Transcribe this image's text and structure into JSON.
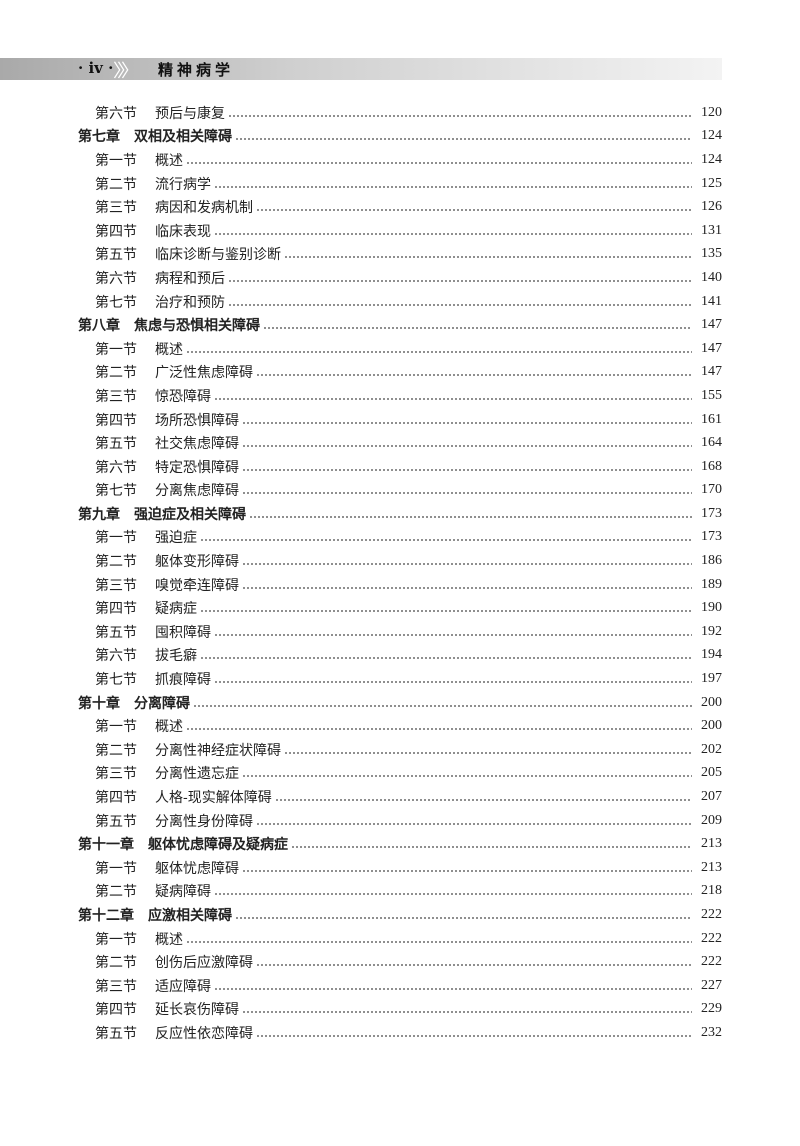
{
  "header": {
    "page_number": "· iv ·",
    "chevrons": "〉〉〉",
    "book_title": "精神病学"
  },
  "toc": [
    {
      "type": "section",
      "label": "第六节",
      "title": "预后与康复",
      "page": "120"
    },
    {
      "type": "chapter",
      "label": "第七章",
      "title": "双相及相关障碍",
      "page": "124"
    },
    {
      "type": "section",
      "label": "第一节",
      "title": "概述",
      "page": "124"
    },
    {
      "type": "section",
      "label": "第二节",
      "title": "流行病学",
      "page": "125"
    },
    {
      "type": "section",
      "label": "第三节",
      "title": "病因和发病机制",
      "page": "126"
    },
    {
      "type": "section",
      "label": "第四节",
      "title": "临床表现",
      "page": "131"
    },
    {
      "type": "section",
      "label": "第五节",
      "title": "临床诊断与鉴别诊断",
      "page": "135"
    },
    {
      "type": "section",
      "label": "第六节",
      "title": "病程和预后",
      "page": "140"
    },
    {
      "type": "section",
      "label": "第七节",
      "title": "治疗和预防",
      "page": "141"
    },
    {
      "type": "chapter",
      "label": "第八章",
      "title": "焦虑与恐惧相关障碍",
      "page": "147"
    },
    {
      "type": "section",
      "label": "第一节",
      "title": "概述",
      "page": "147"
    },
    {
      "type": "section",
      "label": "第二节",
      "title": "广泛性焦虑障碍",
      "page": "147"
    },
    {
      "type": "section",
      "label": "第三节",
      "title": "惊恐障碍",
      "page": "155"
    },
    {
      "type": "section",
      "label": "第四节",
      "title": "场所恐惧障碍",
      "page": "161"
    },
    {
      "type": "section",
      "label": "第五节",
      "title": "社交焦虑障碍",
      "page": "164"
    },
    {
      "type": "section",
      "label": "第六节",
      "title": "特定恐惧障碍",
      "page": "168"
    },
    {
      "type": "section",
      "label": "第七节",
      "title": "分离焦虑障碍",
      "page": "170"
    },
    {
      "type": "chapter",
      "label": "第九章",
      "title": "强迫症及相关障碍",
      "page": "173"
    },
    {
      "type": "section",
      "label": "第一节",
      "title": "强迫症",
      "page": "173"
    },
    {
      "type": "section",
      "label": "第二节",
      "title": "躯体变形障碍",
      "page": "186"
    },
    {
      "type": "section",
      "label": "第三节",
      "title": "嗅觉牵连障碍",
      "page": "189"
    },
    {
      "type": "section",
      "label": "第四节",
      "title": "疑病症",
      "page": "190"
    },
    {
      "type": "section",
      "label": "第五节",
      "title": "囤积障碍",
      "page": "192"
    },
    {
      "type": "section",
      "label": "第六节",
      "title": "拔毛癖",
      "page": "194"
    },
    {
      "type": "section",
      "label": "第七节",
      "title": "抓痕障碍",
      "page": "197"
    },
    {
      "type": "chapter",
      "label": "第十章",
      "title": "分离障碍",
      "page": "200"
    },
    {
      "type": "section",
      "label": "第一节",
      "title": "概述",
      "page": "200"
    },
    {
      "type": "section",
      "label": "第二节",
      "title": "分离性神经症状障碍",
      "page": "202"
    },
    {
      "type": "section",
      "label": "第三节",
      "title": "分离性遗忘症",
      "page": "205"
    },
    {
      "type": "section",
      "label": "第四节",
      "title": "人格-现实解体障碍",
      "page": "207"
    },
    {
      "type": "section",
      "label": "第五节",
      "title": "分离性身份障碍",
      "page": "209"
    },
    {
      "type": "chapter",
      "label": "第十一章",
      "title": "躯体忧虑障碍及疑病症",
      "page": "213"
    },
    {
      "type": "section",
      "label": "第一节",
      "title": "躯体忧虑障碍",
      "page": "213"
    },
    {
      "type": "section",
      "label": "第二节",
      "title": "疑病障碍",
      "page": "218"
    },
    {
      "type": "chapter",
      "label": "第十二章",
      "title": "应激相关障碍",
      "page": "222"
    },
    {
      "type": "section",
      "label": "第一节",
      "title": "概述",
      "page": "222"
    },
    {
      "type": "section",
      "label": "第二节",
      "title": "创伤后应激障碍",
      "page": "222"
    },
    {
      "type": "section",
      "label": "第三节",
      "title": "适应障碍",
      "page": "227"
    },
    {
      "type": "section",
      "label": "第四节",
      "title": "延长哀伤障碍",
      "page": "229"
    },
    {
      "type": "section",
      "label": "第五节",
      "title": "反应性依恋障碍",
      "page": "232"
    }
  ]
}
